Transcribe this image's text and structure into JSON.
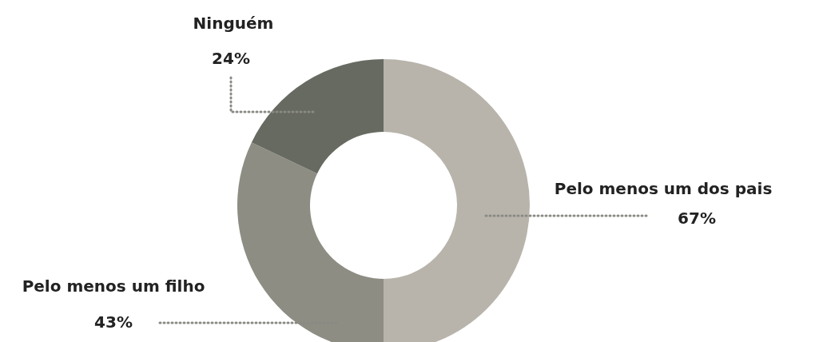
{
  "chart_data": {
    "type": "donut",
    "categories": [
      "Pelo menos um dos pais",
      "Pelo menos um filho",
      "Ninguém"
    ],
    "values": [
      67,
      43,
      24
    ],
    "value_labels": [
      "67%",
      "43%",
      "24%"
    ],
    "colors": [
      "#b8b4ab",
      "#8d8d84",
      "#666a60"
    ]
  }
}
